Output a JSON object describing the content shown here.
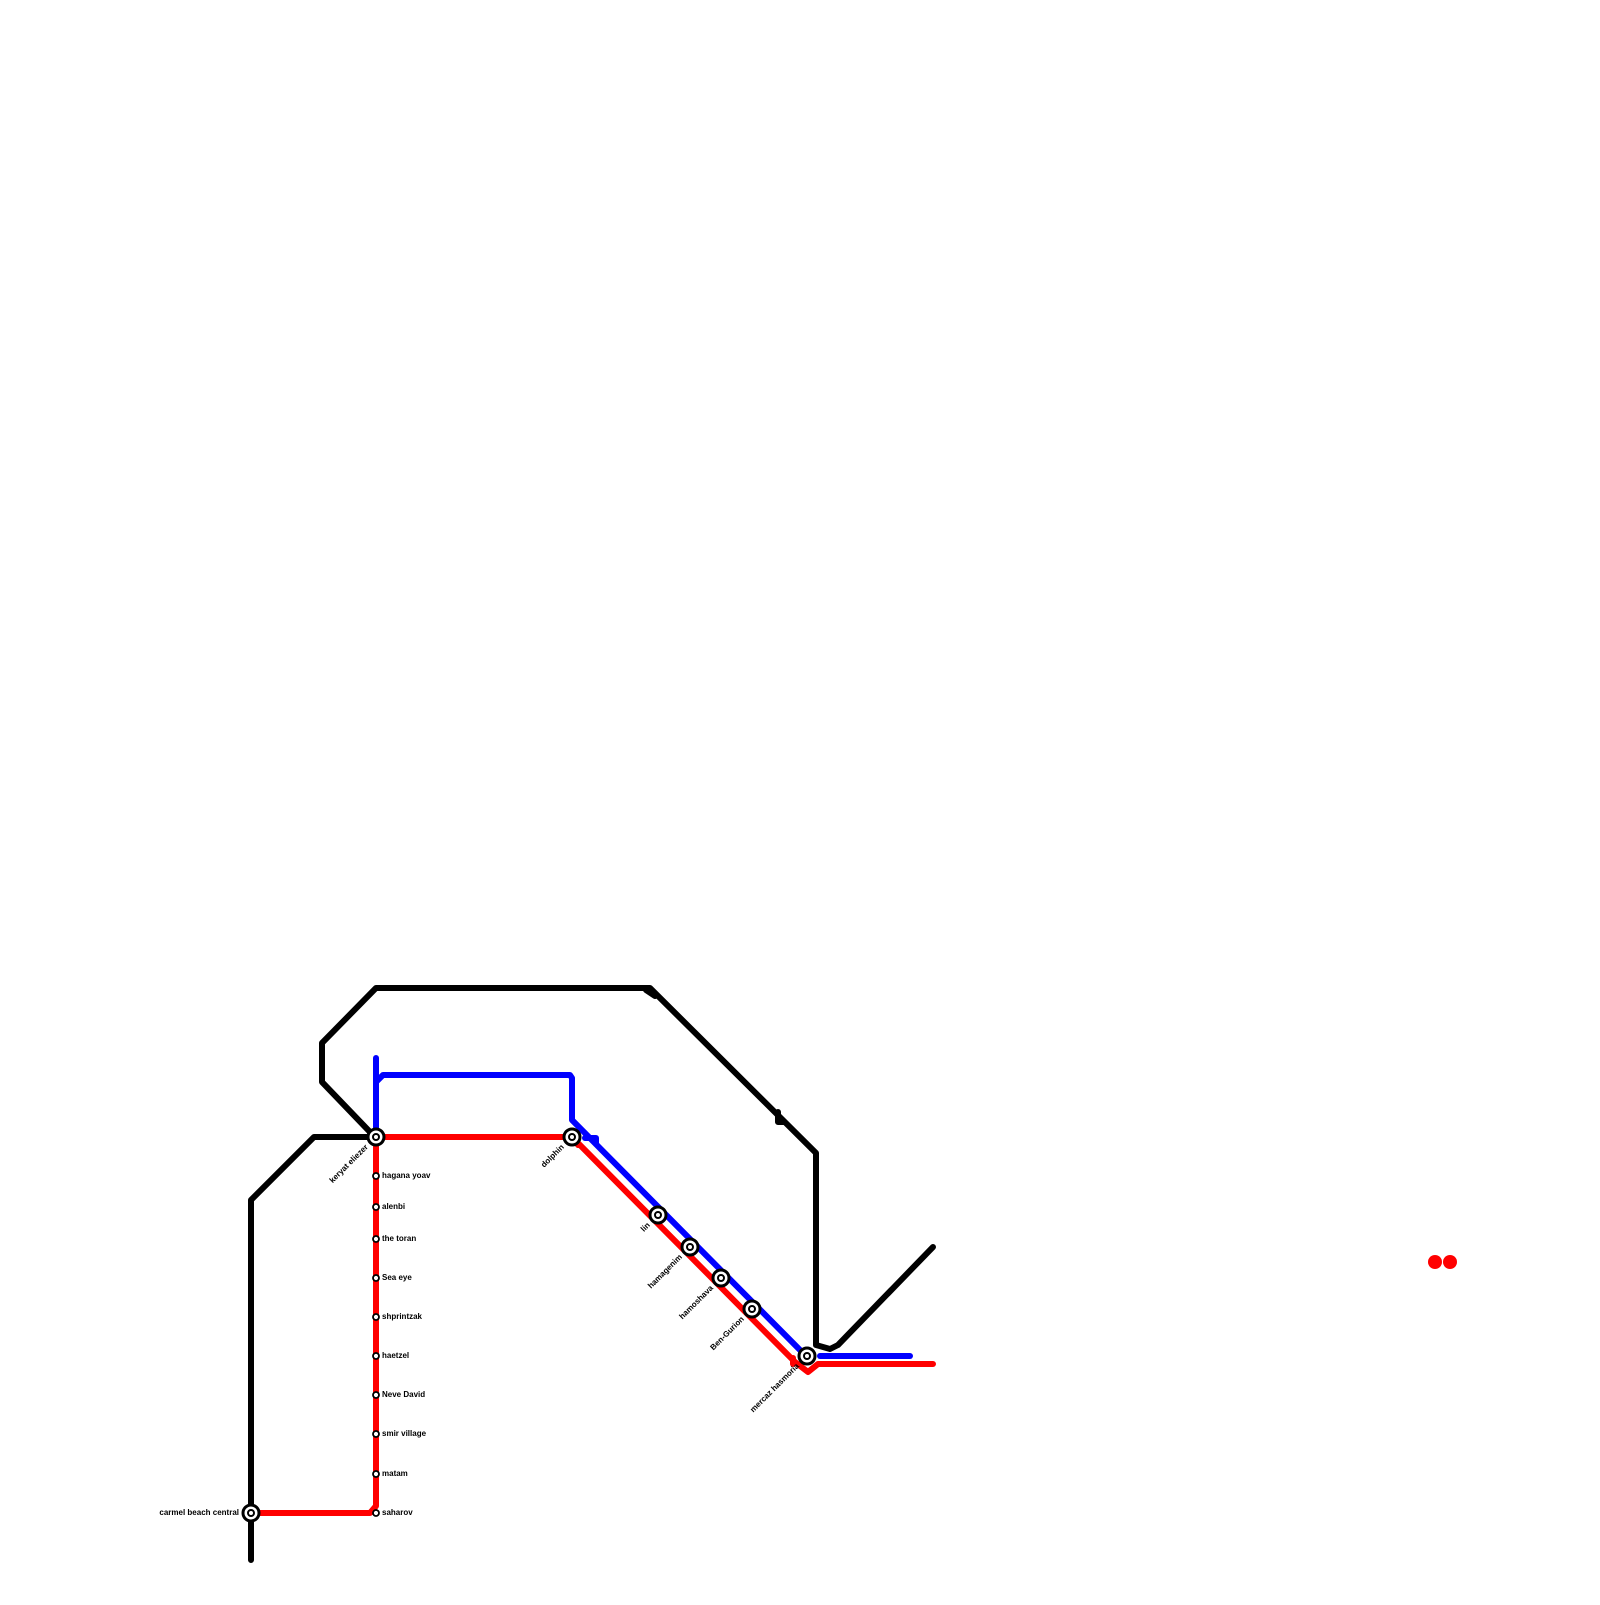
{
  "stations": [
    {
      "label": "keryat eliezer"
    },
    {
      "label": "dolphin"
    },
    {
      "label": "lin"
    },
    {
      "label": "hamagenim"
    },
    {
      "label": "hamoshava"
    },
    {
      "label": "Ben-Gurion"
    },
    {
      "label": "mercaz hasmoria"
    },
    {
      "label": "carmel beach central"
    },
    {
      "label": "hagana yoav"
    },
    {
      "label": "alenbi"
    },
    {
      "label": "the toran"
    },
    {
      "label": "Sea eye"
    },
    {
      "label": "shprintzak"
    },
    {
      "label": "haetzel"
    },
    {
      "label": "Neve David"
    },
    {
      "label": "smir village"
    },
    {
      "label": "matam"
    },
    {
      "label": "saharov"
    }
  ]
}
